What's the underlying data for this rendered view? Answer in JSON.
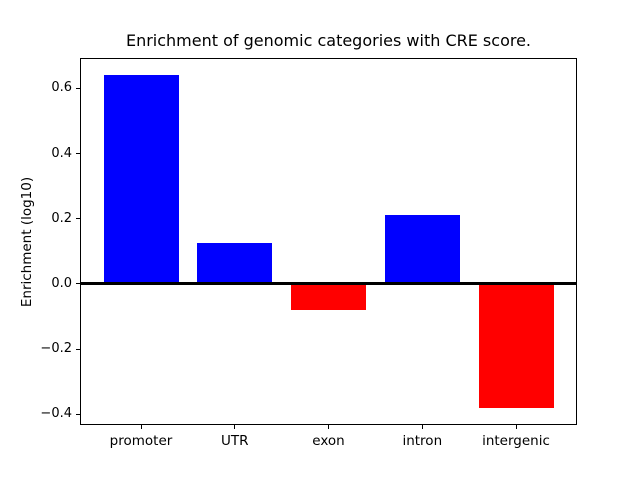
{
  "chart_data": {
    "type": "bar",
    "title": "Enrichment of genomic categories with CRE score.",
    "xlabel": "",
    "ylabel": "Enrichment (log10)",
    "categories": [
      "promoter",
      "UTR",
      "exon",
      "intron",
      "intergenic"
    ],
    "values": [
      0.64,
      0.125,
      -0.08,
      0.21,
      -0.38
    ],
    "bar_width": 0.8,
    "xlim": [
      -0.64,
      4.64
    ],
    "ylim": [
      -0.43,
      0.69
    ],
    "yticks": [
      0.6,
      0.4,
      0.2,
      0.0,
      -0.2,
      -0.4
    ],
    "ytick_labels": [
      "0.6",
      "0.4",
      "0.2",
      "0.0",
      "−0.2",
      "−0.4"
    ],
    "grid": false,
    "legend": "none",
    "zero_line": true,
    "colors": {
      "positive_bar": "#0000ff",
      "negative_bar": "#ff0000",
      "axis": "#000000",
      "background": "#ffffff",
      "text": "#000000"
    }
  }
}
